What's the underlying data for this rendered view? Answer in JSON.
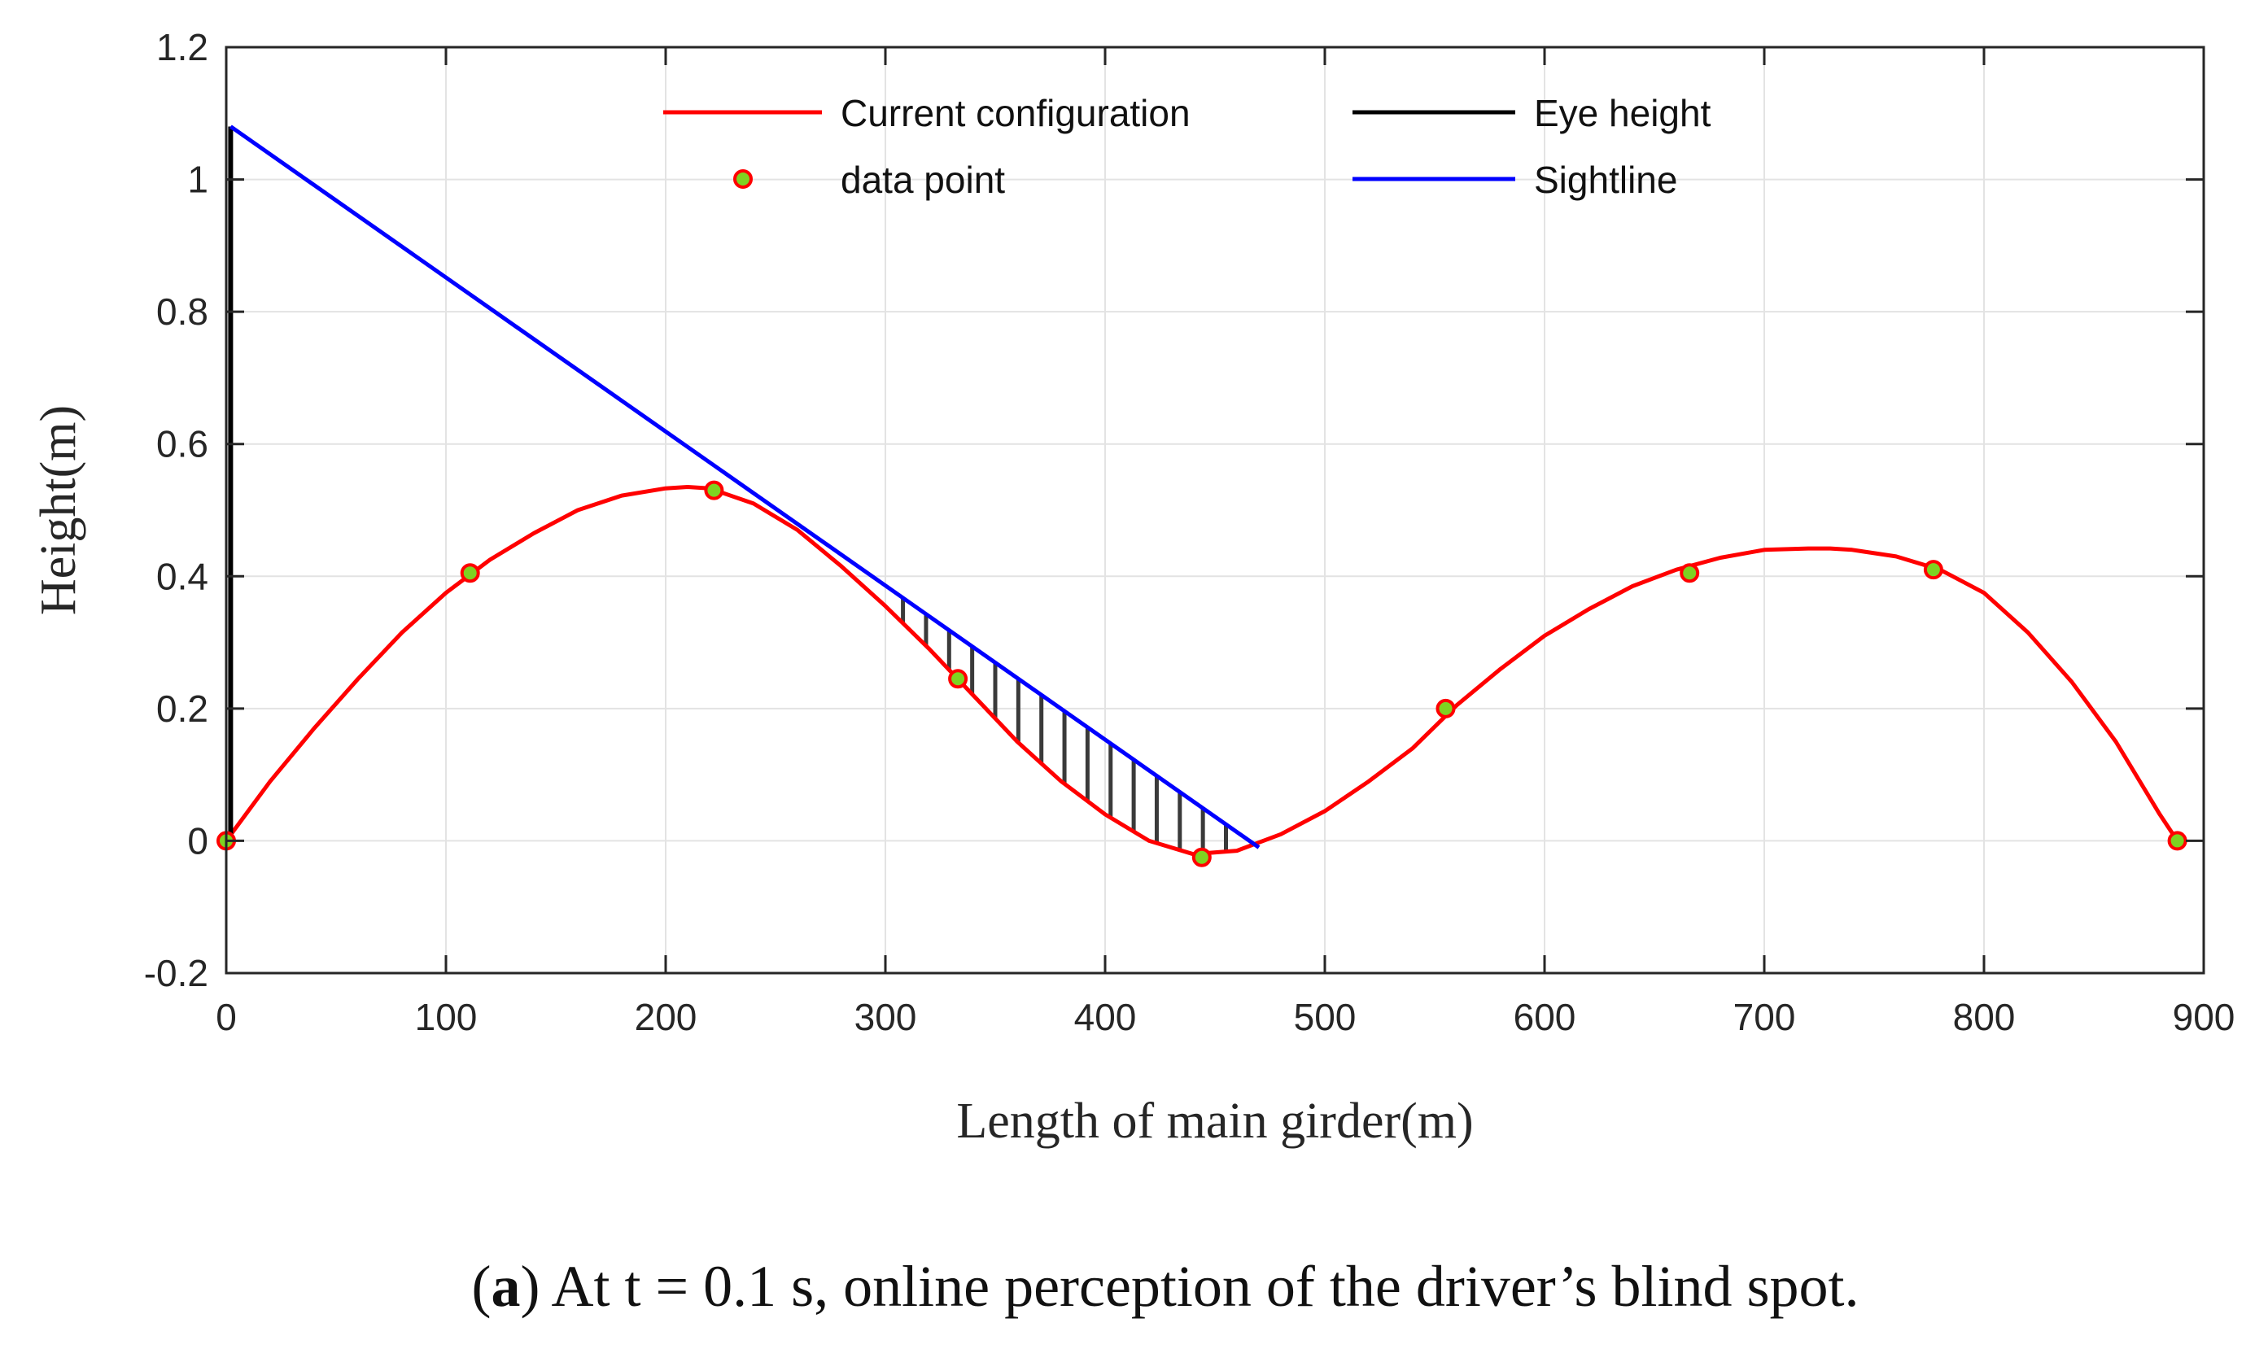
{
  "chart_data": {
    "type": "line",
    "title": "",
    "xlabel": "Length of main girder(m)",
    "ylabel": "Height(m)",
    "xlim": [
      0,
      900
    ],
    "ylim": [
      -0.2,
      1.2
    ],
    "xticks": [
      "0",
      "100",
      "200",
      "300",
      "400",
      "500",
      "600",
      "700",
      "800",
      "900"
    ],
    "yticks": [
      "-0.2",
      "0",
      "0.2",
      "0.4",
      "0.6",
      "0.8",
      "1",
      "1.2"
    ],
    "grid": true,
    "legend_position": "top",
    "series": [
      {
        "name": "Current configuration",
        "color": "#ff0000",
        "x": [
          0,
          20,
          40,
          60,
          80,
          100,
          120,
          140,
          160,
          180,
          200,
          210,
          220,
          240,
          260,
          280,
          300,
          320,
          340,
          360,
          380,
          400,
          420,
          440,
          460,
          480,
          500,
          520,
          540,
          560,
          580,
          600,
          620,
          640,
          660,
          680,
          700,
          720,
          730,
          740,
          760,
          780,
          800,
          820,
          840,
          860,
          880,
          888
        ],
        "y": [
          0.0,
          0.09,
          0.17,
          0.245,
          0.315,
          0.375,
          0.425,
          0.465,
          0.5,
          0.522,
          0.533,
          0.535,
          0.533,
          0.51,
          0.47,
          0.415,
          0.355,
          0.29,
          0.22,
          0.15,
          0.09,
          0.04,
          0.0,
          -0.02,
          -0.015,
          0.01,
          0.045,
          0.09,
          0.14,
          0.205,
          0.26,
          0.31,
          0.35,
          0.385,
          0.41,
          0.428,
          0.44,
          0.442,
          0.442,
          0.44,
          0.43,
          0.41,
          0.375,
          0.315,
          0.24,
          0.15,
          0.04,
          0.0
        ]
      },
      {
        "name": "data point",
        "color": "#ff0000",
        "fill": "#7ed321",
        "x": [
          0,
          111,
          222,
          333,
          444,
          555,
          666,
          777,
          888
        ],
        "y": [
          0.0,
          0.405,
          0.53,
          0.245,
          -0.025,
          0.2,
          0.405,
          0.41,
          0.0
        ]
      },
      {
        "name": "Eye height",
        "color": "#000000",
        "x": [
          2,
          2
        ],
        "y": [
          0.0,
          1.08
        ]
      },
      {
        "name": "Sightline",
        "color": "#0000ff",
        "x": [
          2,
          470
        ],
        "y": [
          1.08,
          -0.01
        ]
      }
    ],
    "annotations": [
      {
        "type": "hatched-blind-zone",
        "x_range": [
          300,
          465
        ],
        "description": "shaded region between sightline and girder"
      }
    ]
  },
  "caption": {
    "label": "a",
    "text": "At t = 0.1 s, online perception of the driver’s blind spot."
  }
}
